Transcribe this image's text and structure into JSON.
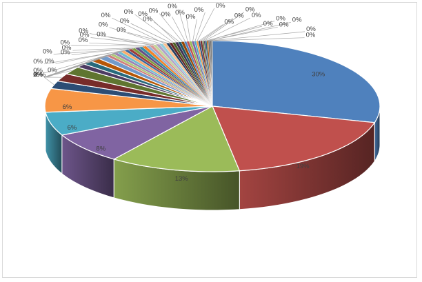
{
  "chart_data": {
    "type": "pie",
    "style": "3d",
    "slices": [
      {
        "label": "30%",
        "value": 30,
        "color": "#4f81bd"
      },
      {
        "label": "19%",
        "value": 19,
        "color": "#c0504d"
      },
      {
        "label": "13%",
        "value": 13,
        "color": "#9bbb59"
      },
      {
        "label": "8%",
        "value": 8,
        "color": "#8064a2"
      },
      {
        "label": "6%",
        "value": 6,
        "color": "#4bacc6"
      },
      {
        "label": "6%",
        "value": 6,
        "color": "#f79646"
      },
      {
        "label": "2%",
        "value": 2,
        "color": "#2c4d75"
      },
      {
        "label": "2%",
        "value": 2,
        "color": "#772c2a"
      },
      {
        "label": "2%",
        "value": 2,
        "color": "#5f7530"
      },
      {
        "label": "1%",
        "value": 1,
        "color": "#4d3b62"
      },
      {
        "label": "1%",
        "value": 1,
        "color": "#276a7c"
      },
      {
        "label": "1%",
        "value": 1,
        "color": "#b65708"
      },
      {
        "label": "1%",
        "value": 1,
        "color": "#729aca"
      },
      {
        "label": "0%",
        "value": 0.45,
        "color": "#d07e7c"
      },
      {
        "label": "0%",
        "value": 0.45,
        "color": "#afc97a"
      },
      {
        "label": "0%",
        "value": 0.45,
        "color": "#9983b5"
      },
      {
        "label": "0%",
        "value": 0.45,
        "color": "#6fbdd1"
      },
      {
        "label": "0%",
        "value": 0.45,
        "color": "#f9ab6b"
      },
      {
        "label": "0%",
        "value": 0.4,
        "color": "#3a679c"
      },
      {
        "label": "0%",
        "value": 0.4,
        "color": "#9e3b38"
      },
      {
        "label": "0%",
        "value": 0.4,
        "color": "#7e9c40"
      },
      {
        "label": "0%",
        "value": 0.4,
        "color": "#664f83"
      },
      {
        "label": "0%",
        "value": 0.4,
        "color": "#358ea6"
      },
      {
        "label": "0%",
        "value": 0.4,
        "color": "#f38226"
      },
      {
        "label": "0%",
        "value": 0.35,
        "color": "#95b3d7"
      },
      {
        "label": "0%",
        "value": 0.35,
        "color": "#d99694"
      },
      {
        "label": "0%",
        "value": 0.35,
        "color": "#c3d69b"
      },
      {
        "label": "0%",
        "value": 0.35,
        "color": "#b3a2c7"
      },
      {
        "label": "0%",
        "value": 0.35,
        "color": "#93cddd"
      },
      {
        "label": "0%",
        "value": 0.35,
        "color": "#fac090"
      },
      {
        "label": "0%",
        "value": 0.3,
        "color": "#254061"
      },
      {
        "label": "0%",
        "value": 0.3,
        "color": "#632523"
      },
      {
        "label": "0%",
        "value": 0.3,
        "color": "#4f6228"
      },
      {
        "label": "0%",
        "value": 0.3,
        "color": "#3f3151"
      },
      {
        "label": "0%",
        "value": 0.3,
        "color": "#215968"
      },
      {
        "label": "0%",
        "value": 0.3,
        "color": "#974806"
      },
      {
        "label": "0%",
        "value": 0.25,
        "color": "#4f81bd"
      },
      {
        "label": "0%",
        "value": 0.25,
        "color": "#c0504d"
      },
      {
        "label": "0%",
        "value": 0.25,
        "color": "#9bbb59"
      },
      {
        "label": "0%",
        "value": 0.25,
        "color": "#8064a2"
      },
      {
        "label": "0%",
        "value": 0.2,
        "color": "#4bacc6"
      },
      {
        "label": "0%",
        "value": 0.2,
        "color": "#f79646"
      },
      {
        "label": "0%",
        "value": 0.2,
        "color": "#2c4d75"
      },
      {
        "label": "0%",
        "value": 0.2,
        "color": "#772c2a"
      },
      {
        "label": "0%",
        "value": 0.15,
        "color": "#5f7530"
      },
      {
        "label": "0%",
        "value": 0.15,
        "color": "#4d3b62"
      },
      {
        "label": "0%",
        "value": 0.15,
        "color": "#276a7c"
      },
      {
        "label": "0%",
        "value": 0.15,
        "color": "#b65708"
      },
      {
        "label": "0%",
        "value": 0.1,
        "color": "#404040"
      },
      {
        "label": "0%",
        "value": 0.1,
        "color": "#404040"
      },
      {
        "label": "0%",
        "value": 0.1,
        "color": "#404040"
      },
      {
        "label": "0%",
        "value": 0.1,
        "color": "#404040"
      }
    ],
    "legend": "none",
    "data_labels": "outside-end with leader lines for small slices"
  }
}
